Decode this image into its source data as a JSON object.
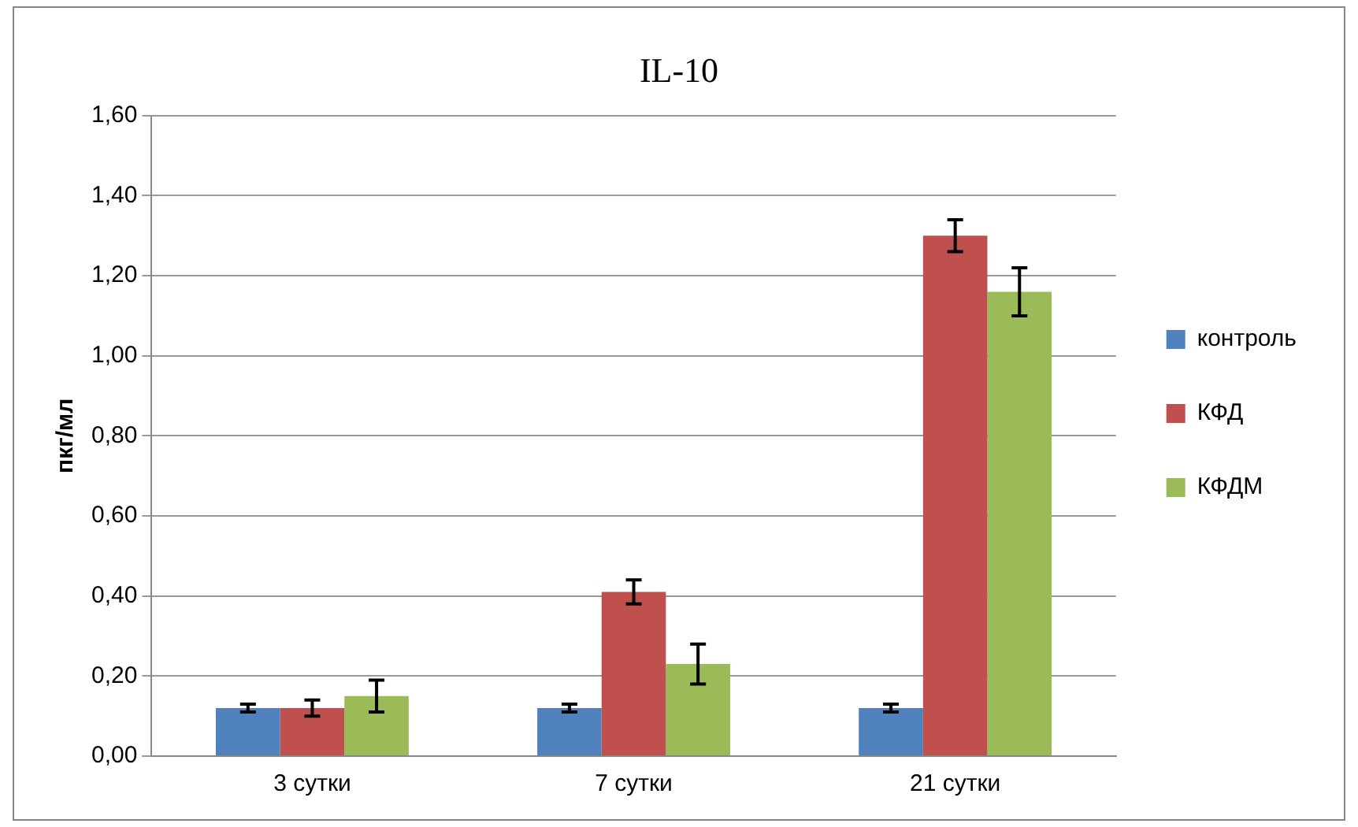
{
  "chart_data": {
    "type": "bar",
    "title": "IL-10",
    "ylabel": "пкг/мл",
    "categories": [
      "3 сутки",
      "7 сутки",
      "21 сутки"
    ],
    "series": [
      {
        "name": "контроль",
        "color": "#4f81bd",
        "values": [
          0.12,
          0.12,
          0.12
        ],
        "errors": [
          0.01,
          0.01,
          0.01
        ]
      },
      {
        "name": "КФД",
        "color": "#c0504d",
        "values": [
          0.12,
          0.41,
          1.3
        ],
        "errors": [
          0.02,
          0.03,
          0.04
        ]
      },
      {
        "name": "КФДМ",
        "color": "#9bbb59",
        "values": [
          0.15,
          0.23,
          1.16
        ],
        "errors": [
          0.04,
          0.05,
          0.06
        ]
      }
    ],
    "ylim": [
      0,
      1.6
    ],
    "yticks": [
      {
        "value": 0,
        "label": "0,00"
      },
      {
        "value": 0.2,
        "label": "0,20"
      },
      {
        "value": 0.4,
        "label": "0,40"
      },
      {
        "value": 0.6,
        "label": "0,60"
      },
      {
        "value": 0.8,
        "label": "0,80"
      },
      {
        "value": 1.0,
        "label": "1,00"
      },
      {
        "value": 1.2,
        "label": "1,20"
      },
      {
        "value": 1.4,
        "label": "1,40"
      },
      {
        "value": 1.6,
        "label": "1,60"
      }
    ],
    "grid": "y",
    "legend": "right"
  }
}
